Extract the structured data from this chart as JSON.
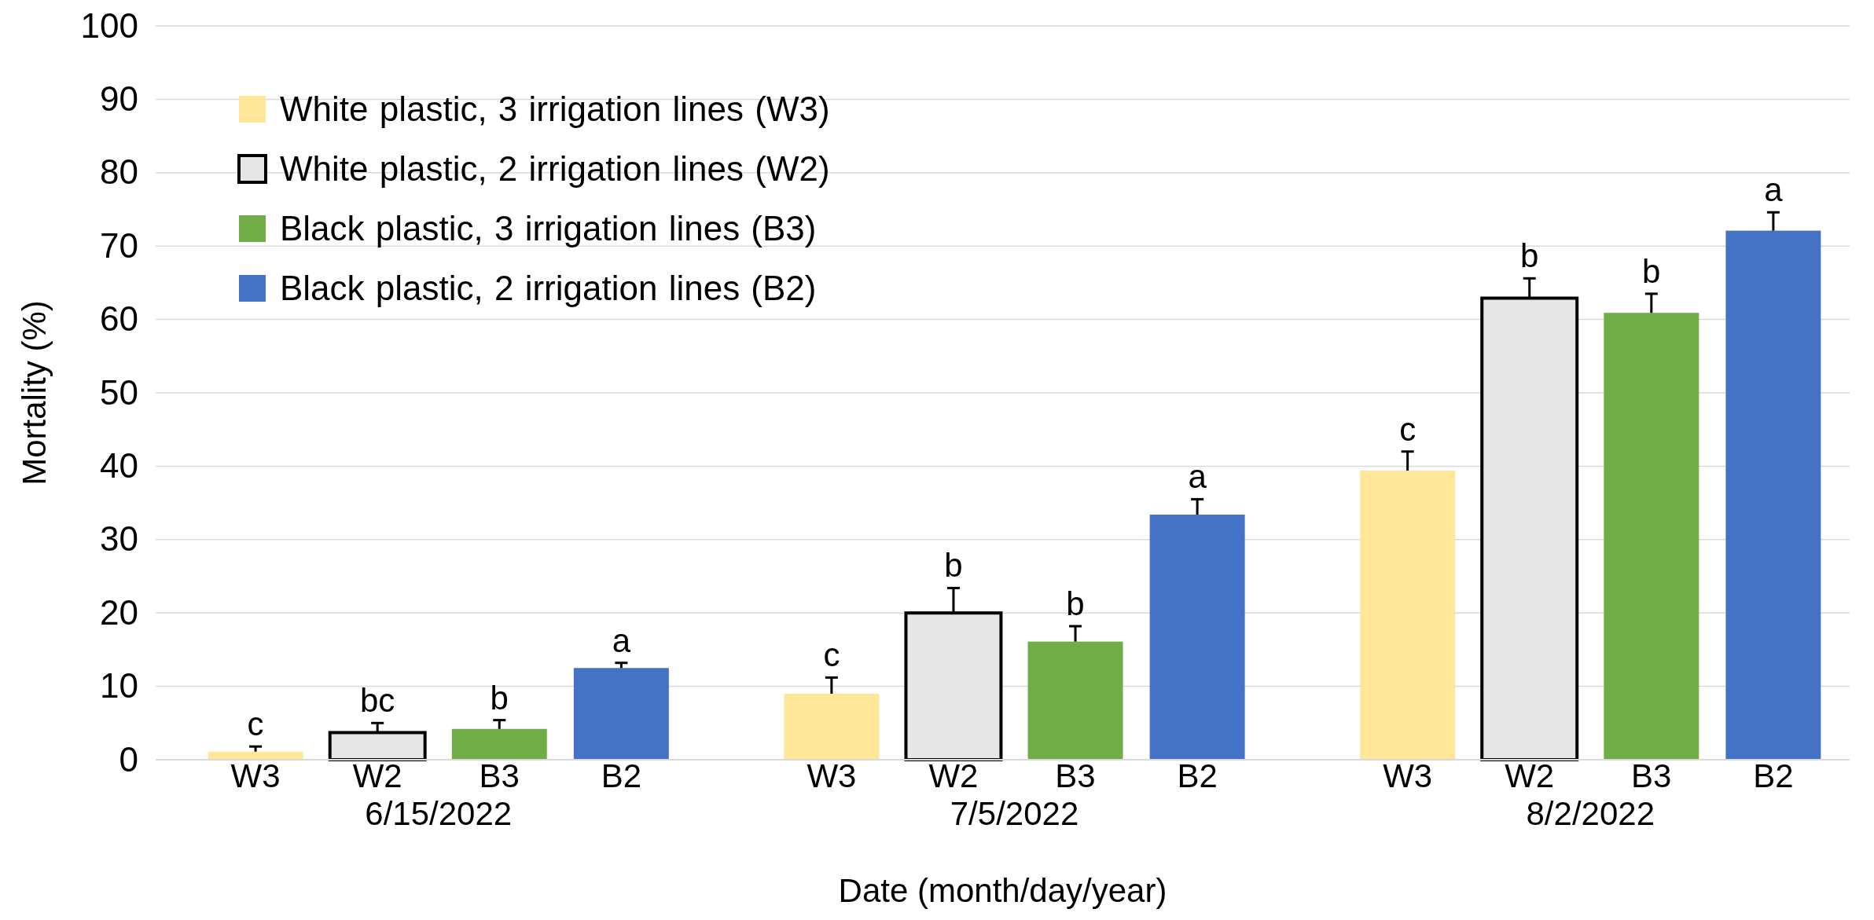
{
  "chart_data": {
    "type": "bar",
    "ylabel": "Mortality (%)",
    "xlabel": "Date (month/day/year)",
    "categories": [
      "6/15/2022",
      "7/5/2022",
      "8/2/2022"
    ],
    "series": [
      {
        "name": "White plastic, 3 irrigation lines (W3)",
        "color": "#ffe699",
        "values": [
          1.1,
          9.0,
          39.4
        ],
        "errors": [
          0.7,
          2.2,
          2.6
        ]
      },
      {
        "name": "White plastic, 2 irrigation lines (W2)",
        "color": "#e7e6e6",
        "values": [
          3.7,
          20.0,
          62.9
        ],
        "errors": [
          1.3,
          3.4,
          2.7
        ]
      },
      {
        "name": "Black plastic, 3 irrigation lines (B3)",
        "color": "#70ad47",
        "values": [
          4.2,
          16.1,
          60.9
        ],
        "errors": [
          1.2,
          2.1,
          2.6
        ]
      },
      {
        "name": "Black plastic, 2 irrigation lines (B2)",
        "color": "#4472c4",
        "values": [
          12.5,
          33.4,
          72.1
        ],
        "errors": [
          0.7,
          2.1,
          2.5
        ]
      }
    ],
    "annotations": [
      "c",
      "bc",
      "b",
      "a",
      "c",
      "b",
      "b",
      "a",
      "c",
      "b",
      "b",
      "a",
      "W3",
      "W2",
      "B3",
      "B2",
      "W3",
      "W2",
      "B3",
      "B2",
      "W3",
      "W2",
      "B3",
      "B2"
    ],
    "ylim": [
      0,
      100
    ],
    "yticks": [
      0,
      10,
      20,
      30,
      40,
      50,
      60,
      70,
      80,
      90,
      100
    ],
    "grid": "y",
    "legend": "top left"
  }
}
